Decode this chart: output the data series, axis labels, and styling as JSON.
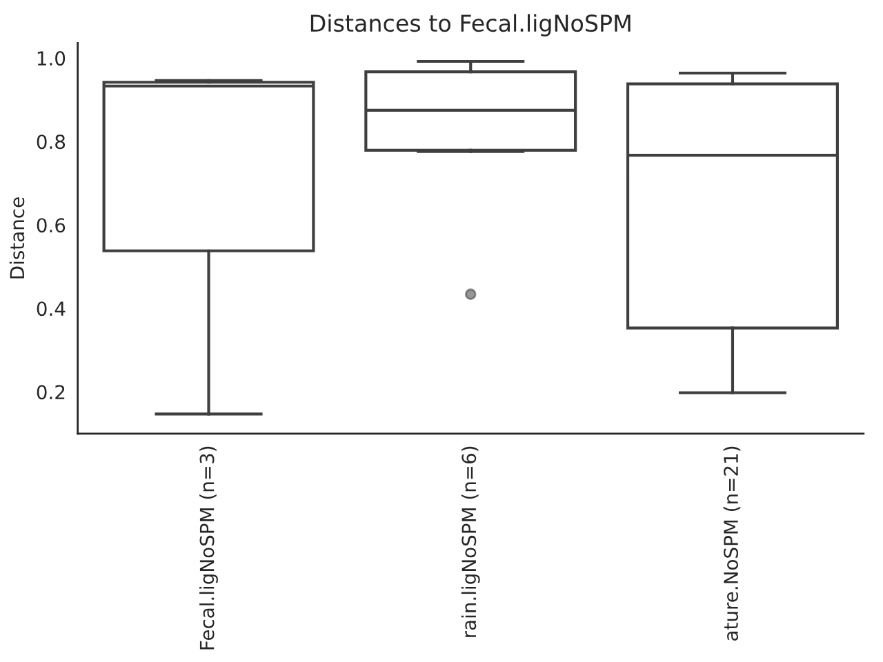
{
  "chart_data": {
    "type": "box",
    "title": "Distances to Fecal.ligNoSPM",
    "ylabel": "Distance",
    "categories": [
      "Fecal.ligNoSPM (n=3)",
      "rain.ligNoSPM (n=6)",
      "ature.NoSPM (n=21)"
    ],
    "color": "#3f3f3f",
    "boxes": [
      {
        "low": 0.147,
        "q1": 0.538,
        "median": 0.933,
        "q3": 0.942,
        "high": 0.946
      },
      {
        "low": 0.776,
        "q1": 0.779,
        "median": 0.875,
        "q3": 0.967,
        "high": 0.992,
        "outliers": [
          0.434
        ]
      },
      {
        "low": 0.198,
        "q1": 0.353,
        "median": 0.767,
        "q3": 0.938,
        "high": 0.964
      }
    ],
    "ylim": [
      0.1,
      1.036
    ],
    "yticks": [
      0.2,
      0.4,
      0.6,
      0.8,
      {
        "value": 1,
        "label": "1.0"
      }
    ],
    "grid": false
  }
}
